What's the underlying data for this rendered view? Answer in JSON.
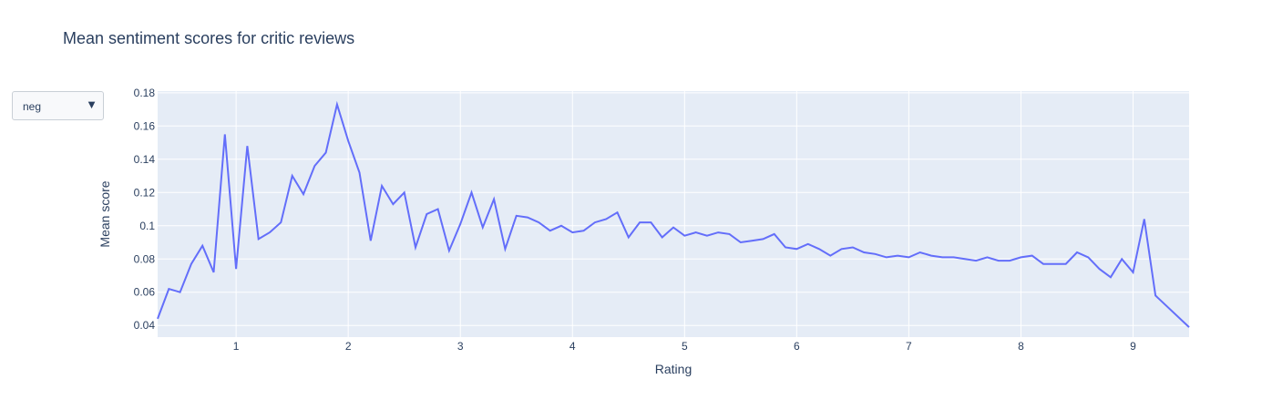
{
  "dropdown": {
    "selected": "neg"
  },
  "icons": {
    "dropdown_arrow": "triangle-down-icon"
  },
  "colors": {
    "line": "#636efa",
    "plot_bg": "#e5ecf6",
    "grid": "#ffffff",
    "text": "#2a3f5f"
  },
  "chart_data": {
    "type": "line",
    "title": "Mean sentiment scores for critic reviews",
    "xlabel": "Rating",
    "ylabel": "Mean score",
    "xlim": [
      0.3,
      9.5
    ],
    "ylim": [
      0.033,
      0.181
    ],
    "xticks": [
      1,
      2,
      3,
      4,
      5,
      6,
      7,
      8,
      9
    ],
    "yticks": [
      0.04,
      0.06,
      0.08,
      0.1,
      0.12,
      0.14,
      0.16,
      0.18
    ],
    "ytick_labels": [
      "0.04",
      "0.06",
      "0.08",
      "0.1",
      "0.12",
      "0.14",
      "0.16",
      "0.18"
    ],
    "grid": true,
    "series": [
      {
        "x": [
          0.3,
          0.4,
          0.5,
          0.6,
          0.7,
          0.8,
          0.9,
          1.0,
          1.1,
          1.2,
          1.3,
          1.4,
          1.5,
          1.6,
          1.7,
          1.8,
          1.9,
          2.0,
          2.1,
          2.2,
          2.3,
          2.4,
          2.5,
          2.6,
          2.7,
          2.8,
          2.9,
          3.0,
          3.1,
          3.2,
          3.3,
          3.4,
          3.5,
          3.6,
          3.7,
          3.8,
          3.9,
          4.0,
          4.1,
          4.2,
          4.3,
          4.4,
          4.5,
          4.6,
          4.7,
          4.8,
          4.9,
          5.0,
          5.1,
          5.2,
          5.3,
          5.4,
          5.5,
          5.6,
          5.7,
          5.8,
          5.9,
          6.0,
          6.1,
          6.2,
          6.3,
          6.4,
          6.5,
          6.6,
          6.7,
          6.8,
          6.9,
          7.0,
          7.1,
          7.2,
          7.3,
          7.4,
          7.5,
          7.6,
          7.7,
          7.8,
          7.9,
          8.0,
          8.1,
          8.2,
          8.3,
          8.4,
          8.5,
          8.6,
          8.7,
          8.8,
          8.9,
          9.0,
          9.1,
          9.2,
          9.5
        ],
        "y": [
          0.044,
          0.062,
          0.06,
          0.077,
          0.088,
          0.072,
          0.155,
          0.074,
          0.148,
          0.092,
          0.096,
          0.102,
          0.13,
          0.119,
          0.136,
          0.144,
          0.173,
          0.151,
          0.132,
          0.091,
          0.124,
          0.113,
          0.12,
          0.087,
          0.107,
          0.11,
          0.085,
          0.101,
          0.12,
          0.099,
          0.116,
          0.086,
          0.106,
          0.105,
          0.102,
          0.097,
          0.1,
          0.096,
          0.097,
          0.102,
          0.104,
          0.108,
          0.093,
          0.102,
          0.102,
          0.093,
          0.099,
          0.094,
          0.096,
          0.094,
          0.096,
          0.095,
          0.09,
          0.091,
          0.092,
          0.095,
          0.087,
          0.086,
          0.089,
          0.086,
          0.082,
          0.086,
          0.087,
          0.084,
          0.083,
          0.081,
          0.082,
          0.081,
          0.084,
          0.082,
          0.081,
          0.081,
          0.08,
          0.079,
          0.081,
          0.079,
          0.079,
          0.081,
          0.082,
          0.077,
          0.077,
          0.077,
          0.084,
          0.081,
          0.074,
          0.069,
          0.08,
          0.072,
          0.104,
          0.058,
          0.039
        ]
      }
    ]
  }
}
